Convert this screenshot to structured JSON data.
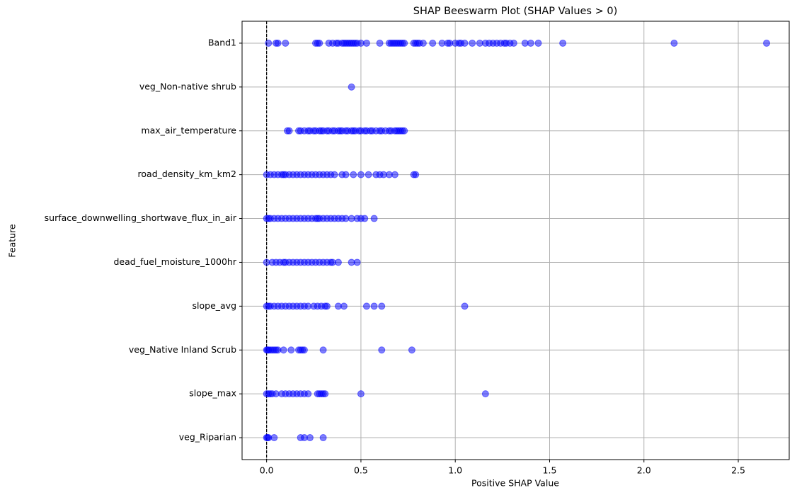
{
  "chart_data": {
    "type": "scatter",
    "title": "SHAP Beeswarm Plot (SHAP Values > 0)",
    "x_label": "Positive SHAP Value",
    "y_label": "Feature",
    "color": "#0000ff",
    "alpha": 0.5,
    "grid": true,
    "zero_line": 0,
    "xlim": [
      -0.13,
      2.77
    ],
    "xticks": [
      {
        "value": 0,
        "label": "0.0"
      },
      {
        "value": 0.5,
        "label": "0.5"
      },
      {
        "value": 1,
        "label": "1.0"
      },
      {
        "value": 1.5,
        "label": "1.5"
      },
      {
        "value": 2,
        "label": "2.0"
      },
      {
        "value": 2.5,
        "label": "2.5"
      }
    ],
    "categories": [
      "Band1",
      "veg_Non-native shrub",
      "max_air_temperature",
      "road_density_km_km2",
      "surface_downwelling_shortwave_flux_in_air",
      "dead_fuel_moisture_1000hr",
      "slope_avg",
      "veg_Native Inland Scrub",
      "slope_max",
      "veg_Riparian"
    ],
    "values": [
      [
        0.01,
        0.05,
        0.06,
        0.1,
        0.26,
        0.27,
        0.28,
        0.33,
        0.35,
        0.37,
        0.38,
        0.4,
        0.41,
        0.42,
        0.43,
        0.44,
        0.45,
        0.46,
        0.47,
        0.48,
        0.5,
        0.53,
        0.6,
        0.65,
        0.66,
        0.67,
        0.68,
        0.69,
        0.7,
        0.71,
        0.72,
        0.73,
        0.78,
        0.79,
        0.8,
        0.81,
        0.83,
        0.88,
        0.93,
        0.96,
        0.97,
        1.0,
        1.02,
        1.03,
        1.05,
        1.09,
        1.13,
        1.16,
        1.18,
        1.2,
        1.22,
        1.24,
        1.26,
        1.27,
        1.29,
        1.31,
        1.37,
        1.4,
        1.44,
        1.57,
        2.16,
        2.65
      ],
      [
        0.45
      ],
      [
        0.11,
        0.12,
        0.17,
        0.18,
        0.2,
        0.22,
        0.23,
        0.25,
        0.26,
        0.28,
        0.29,
        0.3,
        0.32,
        0.33,
        0.35,
        0.36,
        0.38,
        0.39,
        0.4,
        0.42,
        0.43,
        0.45,
        0.46,
        0.47,
        0.49,
        0.5,
        0.52,
        0.53,
        0.55,
        0.56,
        0.58,
        0.6,
        0.61,
        0.63,
        0.65,
        0.66,
        0.68,
        0.69,
        0.7,
        0.71,
        0.72,
        0.73
      ],
      [
        0.0,
        0.02,
        0.04,
        0.06,
        0.08,
        0.09,
        0.1,
        0.12,
        0.14,
        0.16,
        0.18,
        0.2,
        0.22,
        0.24,
        0.26,
        0.28,
        0.3,
        0.32,
        0.34,
        0.36,
        0.4,
        0.42,
        0.46,
        0.5,
        0.54,
        0.58,
        0.6,
        0.62,
        0.65,
        0.68,
        0.78,
        0.79
      ],
      [
        0.0,
        0.01,
        0.02,
        0.04,
        0.06,
        0.08,
        0.1,
        0.12,
        0.14,
        0.16,
        0.18,
        0.2,
        0.22,
        0.24,
        0.26,
        0.27,
        0.28,
        0.3,
        0.32,
        0.34,
        0.36,
        0.38,
        0.4,
        0.42,
        0.45,
        0.48,
        0.5,
        0.52,
        0.57
      ],
      [
        0.0,
        0.03,
        0.05,
        0.07,
        0.09,
        0.1,
        0.12,
        0.14,
        0.16,
        0.18,
        0.2,
        0.22,
        0.24,
        0.26,
        0.28,
        0.3,
        0.32,
        0.34,
        0.35,
        0.38,
        0.45,
        0.48
      ],
      [
        0.0,
        0.01,
        0.02,
        0.04,
        0.06,
        0.08,
        0.1,
        0.12,
        0.14,
        0.16,
        0.18,
        0.2,
        0.22,
        0.25,
        0.27,
        0.29,
        0.31,
        0.32,
        0.38,
        0.41,
        0.53,
        0.57,
        0.61,
        1.05
      ],
      [
        0.0,
        0.005,
        0.01,
        0.02,
        0.03,
        0.04,
        0.05,
        0.06,
        0.09,
        0.13,
        0.17,
        0.18,
        0.19,
        0.2,
        0.3,
        0.61,
        0.77
      ],
      [
        0.0,
        0.01,
        0.02,
        0.03,
        0.05,
        0.08,
        0.1,
        0.12,
        0.14,
        0.16,
        0.18,
        0.2,
        0.22,
        0.27,
        0.28,
        0.29,
        0.3,
        0.31,
        0.5,
        1.16
      ],
      [
        0.0,
        0.005,
        0.01,
        0.04,
        0.18,
        0.2,
        0.23,
        0.3
      ]
    ]
  }
}
